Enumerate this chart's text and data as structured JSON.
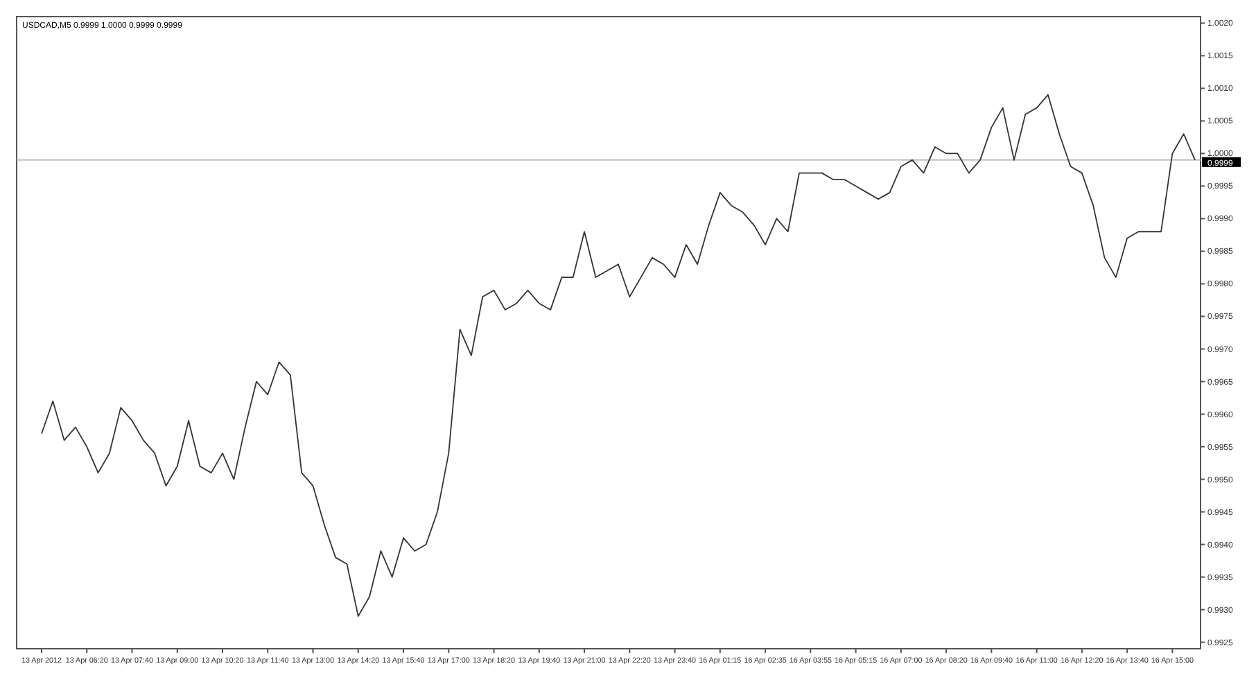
{
  "chart_data": {
    "type": "line",
    "title": "USDCAD,M5  0.9999 1.0000 0.9999 0.9999",
    "categories": [
      "13 Apr 2012",
      null,
      null,
      null,
      "13 Apr 06:20",
      null,
      null,
      null,
      "13 Apr 07:40",
      null,
      null,
      null,
      "13 Apr 09:00",
      null,
      null,
      null,
      "13 Apr 10:20",
      null,
      null,
      null,
      "13 Apr 11:40",
      null,
      null,
      null,
      "13 Apr 13:00",
      null,
      null,
      null,
      "13 Apr 14:20",
      null,
      null,
      null,
      "13 Apr 15:40",
      null,
      null,
      null,
      "13 Apr 17:00",
      null,
      null,
      null,
      "13 Apr 18:20",
      null,
      null,
      null,
      "13 Apr 19:40",
      null,
      null,
      null,
      "13 Apr 21:00",
      null,
      null,
      null,
      "13 Apr 22:20",
      null,
      null,
      null,
      "13 Apr 23:40",
      null,
      null,
      null,
      "16 Apr 01:15",
      null,
      null,
      null,
      "16 Apr 02:35",
      null,
      null,
      null,
      "16 Apr 03:55",
      null,
      null,
      null,
      "16 Apr 05:15",
      null,
      null,
      null,
      "16 Apr 07:00",
      null,
      null,
      null,
      "16 Apr 08:20",
      null,
      null,
      null,
      "16 Apr 09:40",
      null,
      null,
      null,
      "16 Apr 11:00",
      null,
      null,
      null,
      "16 Apr 12:20",
      null,
      null,
      null,
      "16 Apr 13:40",
      null,
      null,
      null,
      "16 Apr 15:00",
      null,
      null
    ],
    "series": [
      {
        "color": "#333333",
        "values": [
          0.9957,
          0.9962,
          0.9956,
          0.9958,
          0.9955,
          0.9951,
          0.9954,
          0.9961,
          0.9959,
          0.9956,
          0.9954,
          0.9949,
          0.9952,
          0.9959,
          0.9952,
          0.9951,
          0.9954,
          0.995,
          0.9958,
          0.9965,
          0.9963,
          0.9968,
          0.9966,
          0.9951,
          0.9949,
          0.9943,
          0.9938,
          0.9937,
          0.9929,
          0.9932,
          0.9939,
          0.9935,
          0.9941,
          0.9939,
          0.994,
          0.9945,
          0.9954,
          0.9973,
          0.9969,
          0.9978,
          0.9979,
          0.9976,
          0.9977,
          0.9979,
          0.9977,
          0.9976,
          0.9981,
          0.9981,
          0.9988,
          0.9981,
          0.9982,
          0.9983,
          0.9978,
          0.9981,
          0.9984,
          0.9983,
          0.9981,
          0.9986,
          0.9983,
          0.9989,
          0.9994,
          0.9992,
          0.9991,
          0.9989,
          0.9986,
          0.999,
          0.9988,
          0.9997,
          0.9997,
          0.9997,
          0.9996,
          0.9996,
          0.9995,
          0.9994,
          0.9993,
          0.9994,
          0.9998,
          0.9999,
          0.9997,
          1.0001,
          1.0,
          1.0,
          0.9997,
          0.9999,
          1.0004,
          1.0007,
          0.9999,
          1.0006,
          1.0007,
          1.0009,
          1.0003,
          0.9998,
          0.9997,
          0.9992,
          0.9984,
          0.9981,
          0.9987,
          0.9988,
          0.9988,
          0.9988,
          1.0,
          1.0003,
          0.9999
        ]
      }
    ],
    "ylim": [
      0.9924,
      1.0021
    ],
    "yticks": [
      {
        "value": 1.002,
        "label": "1.0020"
      },
      {
        "value": 1.0015,
        "label": "1.0015"
      },
      {
        "value": 1.001,
        "label": "1.0010"
      },
      {
        "value": 1.0005,
        "label": "1.0005"
      },
      {
        "value": 1.0,
        "label": "1.0000"
      },
      {
        "value": 0.9995,
        "label": "0.9995"
      },
      {
        "value": 0.999,
        "label": "0.9990"
      },
      {
        "value": 0.9985,
        "label": "0.9985"
      },
      {
        "value": 0.998,
        "label": "0.9980"
      },
      {
        "value": 0.9975,
        "label": "0.9975"
      },
      {
        "value": 0.997,
        "label": "0.9970"
      },
      {
        "value": 0.9965,
        "label": "0.9965"
      },
      {
        "value": 0.996,
        "label": "0.9960"
      },
      {
        "value": 0.9955,
        "label": "0.9955"
      },
      {
        "value": 0.995,
        "label": "0.9950"
      },
      {
        "value": 0.9945,
        "label": "0.9945"
      },
      {
        "value": 0.994,
        "label": "0.9940"
      },
      {
        "value": 0.9935,
        "label": "0.9935"
      },
      {
        "value": 0.993,
        "label": "0.9930"
      },
      {
        "value": 0.9925,
        "label": "0.9925"
      }
    ],
    "ref_lines": [
      {
        "axis": "y",
        "value": 0.9999,
        "label": "0.9999",
        "color": "#c0c0c0"
      }
    ]
  }
}
